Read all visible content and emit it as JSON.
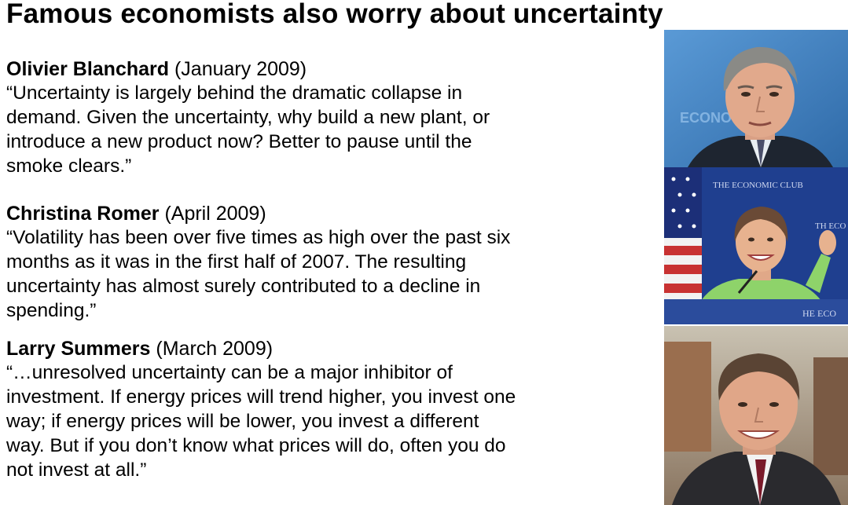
{
  "title": "Famous economists also worry about uncertainty",
  "quotes": [
    {
      "name": "Olivier Blanchard",
      "date": "(January 2009)",
      "lines": [
        " “Uncertainty is largely behind the dramatic collapse in",
        "demand. Given the uncertainty, why build a new plant, or",
        "introduce a new product now? Better to pause until the",
        "smoke clears.”"
      ]
    },
    {
      "name": "Christina Romer",
      "date": "(April 2009)",
      "lines": [
        "“Volatility has been over five times as high over the past six",
        "months as it was in the first half of 2007. The resulting",
        "uncertainty has almost surely contributed to a decline in",
        "spending.”"
      ]
    },
    {
      "name": "Larry Summers",
      "date": "(March 2009)",
      "lines": [
        "“…unresolved uncertainty can be a major inhibitor of",
        "investment. If energy prices will trend higher, you invest one",
        "way; if energy prices will be lower, you invest a different",
        "way. But if you don’t know what prices will do, often you do",
        "not invest at all.”"
      ]
    }
  ],
  "photos": {
    "blanchard": {
      "icon": "portrait-photo",
      "bg": "#3f7fbf",
      "sign_text": "ECONO"
    },
    "romer": {
      "icon": "portrait-photo",
      "bg": "#1f3f8f",
      "banner_text": "THE ECONOMIC CLUB",
      "podium_text": "HE ECO",
      "sign_text": "TH ECO"
    },
    "summers": {
      "icon": "portrait-photo",
      "bg": "#a08a70"
    }
  }
}
